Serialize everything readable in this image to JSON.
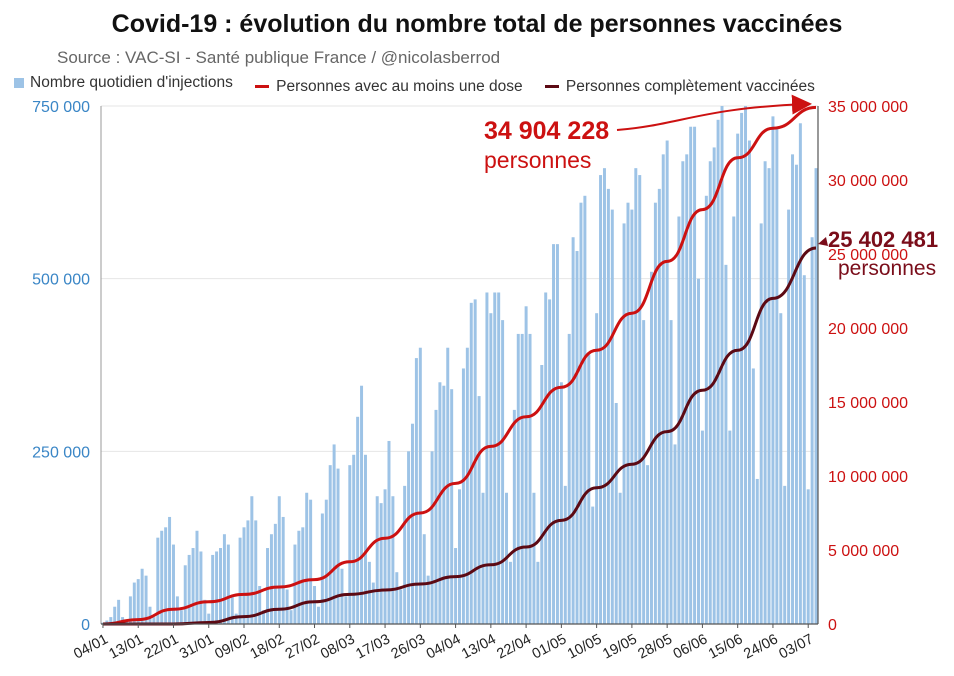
{
  "chart_data": {
    "type": "bar+line",
    "title": "Covid-19 : évolution du nombre total de personnes vaccinées",
    "subtitle": "Source : VAC-SI - Santé publique France / @nicolasberrod",
    "legend": [
      "Nombre quotidien d'injections",
      "Personnes avec au moins une dose",
      "Personnes complètement vaccinées"
    ],
    "x_tick_labels": [
      "04/01",
      "13/01",
      "22/01",
      "31/01",
      "09/02",
      "18/02",
      "27/02",
      "08/03",
      "17/03",
      "26/03",
      "04/04",
      "13/04",
      "22/04",
      "01/05",
      "10/05",
      "19/05",
      "28/05",
      "06/06",
      "15/06",
      "24/06",
      "03/07"
    ],
    "y_left_ticks": [
      "0",
      "250 000",
      "500 000",
      "750 000"
    ],
    "y_right_ticks": [
      "0",
      "5 000 000",
      "10 000 000",
      "15 000 000",
      "20 000 000",
      "25 000 000",
      "30 000 000",
      "35 000 000"
    ],
    "y_left_lim": [
      0,
      750000
    ],
    "y_right_lim": [
      0,
      35000000
    ],
    "daily_injections_weekly_pattern": [
      {
        "week_of": "04/01",
        "values": [
          2000,
          5000,
          10000,
          25000,
          35000,
          10000,
          4000
        ]
      },
      {
        "week_of": "11/01",
        "values": [
          40000,
          60000,
          65000,
          80000,
          70000,
          25000,
          10000
        ]
      },
      {
        "week_of": "18/01",
        "values": [
          125000,
          135000,
          140000,
          155000,
          115000,
          40000,
          20000
        ]
      },
      {
        "week_of": "25/01",
        "values": [
          85000,
          100000,
          110000,
          135000,
          105000,
          35000,
          15000
        ]
      },
      {
        "week_of": "01/02",
        "values": [
          100000,
          105000,
          110000,
          130000,
          115000,
          40000,
          15000
        ]
      },
      {
        "week_of": "08/02",
        "values": [
          125000,
          140000,
          150000,
          185000,
          150000,
          55000,
          20000
        ]
      },
      {
        "week_of": "15/02",
        "values": [
          110000,
          130000,
          145000,
          185000,
          155000,
          50000,
          20000
        ]
      },
      {
        "week_of": "22/02",
        "values": [
          115000,
          135000,
          140000,
          190000,
          180000,
          55000,
          25000
        ]
      },
      {
        "week_of": "01/03",
        "values": [
          160000,
          180000,
          230000,
          260000,
          225000,
          80000,
          40000
        ]
      },
      {
        "week_of": "08/03",
        "values": [
          230000,
          245000,
          300000,
          345000,
          245000,
          90000,
          60000
        ]
      },
      {
        "week_of": "15/03",
        "values": [
          185000,
          175000,
          195000,
          265000,
          185000,
          75000,
          50000
        ]
      },
      {
        "week_of": "22/03",
        "values": [
          200000,
          250000,
          290000,
          385000,
          400000,
          130000,
          70000
        ]
      },
      {
        "week_of": "29/03",
        "values": [
          250000,
          310000,
          350000,
          345000,
          400000,
          340000,
          110000
        ]
      },
      {
        "week_of": "05/04",
        "values": [
          195000,
          370000,
          400000,
          465000,
          470000,
          330000,
          190000
        ]
      },
      {
        "week_of": "12/04",
        "values": [
          480000,
          450000,
          480000,
          480000,
          440000,
          190000,
          90000
        ]
      },
      {
        "week_of": "19/04",
        "values": [
          310000,
          420000,
          420000,
          460000,
          420000,
          190000,
          90000
        ]
      },
      {
        "week_of": "26/04",
        "values": [
          375000,
          480000,
          470000,
          550000,
          550000,
          350000,
          200000
        ]
      },
      {
        "week_of": "03/05",
        "values": [
          420000,
          560000,
          540000,
          610000,
          620000,
          390000,
          170000
        ]
      },
      {
        "week_of": "10/05",
        "values": [
          450000,
          650000,
          660000,
          630000,
          600000,
          320000,
          190000
        ]
      },
      {
        "week_of": "17/05",
        "values": [
          580000,
          610000,
          600000,
          660000,
          650000,
          440000,
          230000
        ]
      },
      {
        "week_of": "24/05",
        "values": [
          510000,
          610000,
          630000,
          680000,
          700000,
          440000,
          260000
        ]
      },
      {
        "week_of": "31/05",
        "values": [
          590000,
          670000,
          680000,
          720000,
          720000,
          500000,
          280000
        ]
      },
      {
        "week_of": "07/06",
        "values": [
          620000,
          670000,
          690000,
          730000,
          750000,
          520000,
          280000
        ]
      },
      {
        "week_of": "14/06",
        "values": [
          590000,
          710000,
          740000,
          750000,
          700000,
          370000,
          210000
        ]
      },
      {
        "week_of": "21/06",
        "values": [
          580000,
          670000,
          660000,
          735000,
          720000,
          450000,
          200000
        ]
      },
      {
        "week_of": "28/06",
        "values": [
          600000,
          680000,
          665000,
          725000,
          505000,
          195000,
          560000
        ]
      },
      {
        "week_of": "05/07",
        "values": [
          660000
        ]
      }
    ],
    "series_cumulative": [
      {
        "name": "Personnes avec au moins une dose",
        "points": [
          {
            "x": "04/01",
            "y": 0
          },
          {
            "x": "13/01",
            "y": 300000
          },
          {
            "x": "22/01",
            "y": 1000000
          },
          {
            "x": "31/01",
            "y": 1500000
          },
          {
            "x": "09/02",
            "y": 2000000
          },
          {
            "x": "18/02",
            "y": 2500000
          },
          {
            "x": "27/02",
            "y": 3000000
          },
          {
            "x": "08/03",
            "y": 4200000
          },
          {
            "x": "17/03",
            "y": 5800000
          },
          {
            "x": "26/03",
            "y": 7500000
          },
          {
            "x": "04/04",
            "y": 9500000
          },
          {
            "x": "13/04",
            "y": 12000000
          },
          {
            "x": "22/04",
            "y": 14000000
          },
          {
            "x": "01/05",
            "y": 16000000
          },
          {
            "x": "10/05",
            "y": 18500000
          },
          {
            "x": "19/05",
            "y": 21000000
          },
          {
            "x": "28/05",
            "y": 24500000
          },
          {
            "x": "06/06",
            "y": 28000000
          },
          {
            "x": "15/06",
            "y": 31500000
          },
          {
            "x": "24/06",
            "y": 33500000
          },
          {
            "x": "03/07",
            "y": 34904228
          }
        ]
      },
      {
        "name": "Personnes complètement vaccinées",
        "points": [
          {
            "x": "04/01",
            "y": 0
          },
          {
            "x": "13/01",
            "y": 0
          },
          {
            "x": "22/01",
            "y": 0
          },
          {
            "x": "31/01",
            "y": 100000
          },
          {
            "x": "09/02",
            "y": 500000
          },
          {
            "x": "18/02",
            "y": 1000000
          },
          {
            "x": "27/02",
            "y": 1500000
          },
          {
            "x": "08/03",
            "y": 2000000
          },
          {
            "x": "17/03",
            "y": 2300000
          },
          {
            "x": "26/03",
            "y": 2700000
          },
          {
            "x": "04/04",
            "y": 3200000
          },
          {
            "x": "13/04",
            "y": 4000000
          },
          {
            "x": "22/04",
            "y": 5200000
          },
          {
            "x": "01/05",
            "y": 7000000
          },
          {
            "x": "10/05",
            "y": 9200000
          },
          {
            "x": "19/05",
            "y": 10800000
          },
          {
            "x": "28/05",
            "y": 13000000
          },
          {
            "x": "06/06",
            "y": 15800000
          },
          {
            "x": "15/06",
            "y": 18500000
          },
          {
            "x": "24/06",
            "y": 22000000
          },
          {
            "x": "03/07",
            "y": 25402481
          }
        ]
      }
    ],
    "annotations": [
      {
        "value": "34 904 228",
        "unit": "personnes",
        "color": "#cc1111"
      },
      {
        "value": "25 402 481",
        "unit": "personnes",
        "color": "#7a0d1a"
      }
    ],
    "colors": {
      "bars": "#9dc3e6",
      "dose1": "#cc1111",
      "full": "#5c0a14",
      "left_axis": "#3a86c6",
      "right_axis": "#cc1111"
    }
  }
}
